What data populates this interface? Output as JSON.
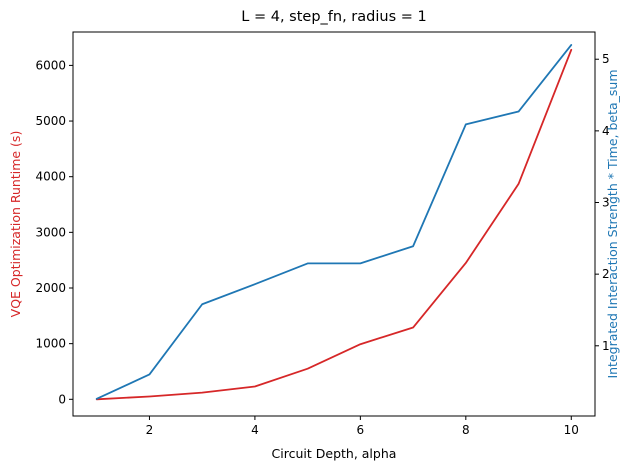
{
  "chart_data": {
    "type": "line",
    "title": "L = 4, step_fn, radius = 1",
    "xlabel": "Circuit Depth, alpha",
    "ylabel_left": "VQE Optimization Runtime (s)",
    "ylabel_right": "Integrated Interaction Strength * Time, beta_sum",
    "x": [
      1,
      2,
      3,
      4,
      5,
      6,
      7,
      8,
      9,
      10
    ],
    "xlim": [
      0.55,
      10.45
    ],
    "xticks": [
      2,
      4,
      6,
      8,
      10
    ],
    "ylim_left": [
      -300,
      6600
    ],
    "yticks_left": [
      0,
      1000,
      2000,
      3000,
      4000,
      5000,
      6000
    ],
    "ylim_right": [
      0.02,
      5.38
    ],
    "yticks_right": [
      1,
      2,
      3,
      4,
      5
    ],
    "grid": false,
    "legend": "none",
    "series": [
      {
        "axis": "left",
        "color": "#d62728",
        "values": [
          0,
          50,
          120,
          230,
          550,
          990,
          1290,
          2450,
          3870,
          6280
        ]
      },
      {
        "axis": "right",
        "color": "#1f77b4",
        "values": [
          0.26,
          0.6,
          1.58,
          1.86,
          2.15,
          2.15,
          2.39,
          4.09,
          4.27,
          5.2
        ]
      }
    ],
    "colors": {
      "left_label": "#d62728",
      "right_label": "#1f77b4",
      "axes": "#000000"
    }
  }
}
